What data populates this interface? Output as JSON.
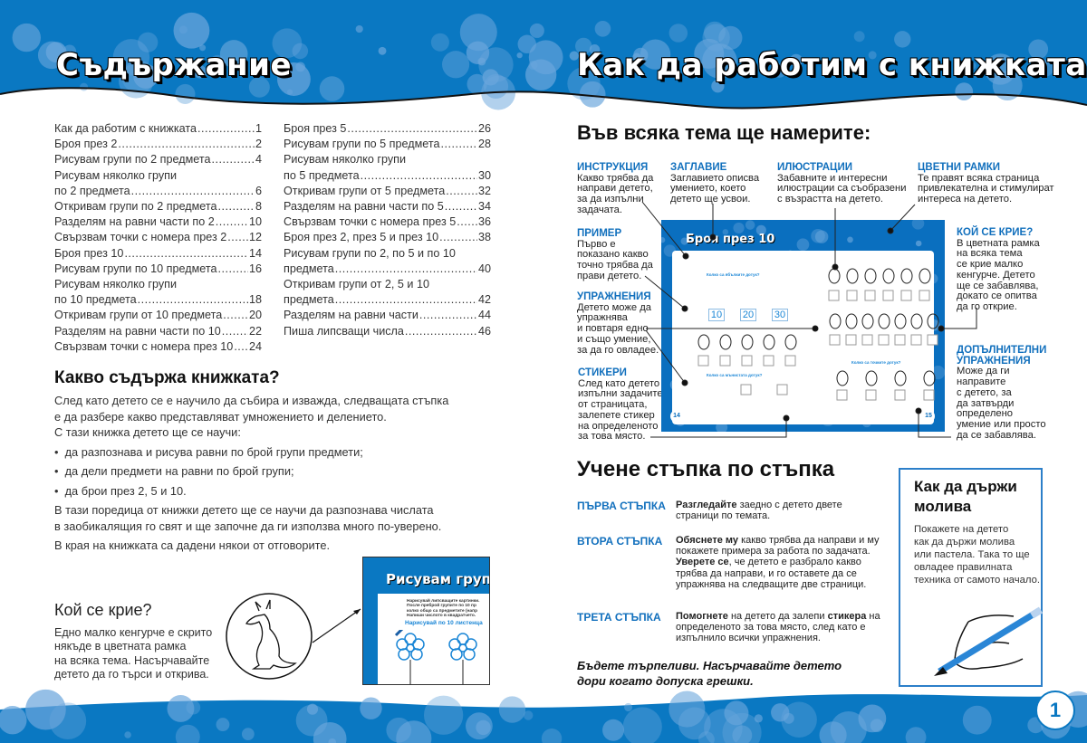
{
  "left_page": {
    "title": "Съдържание",
    "toc_col1": [
      {
        "label": "Как да работим с книжката",
        "page": "1"
      },
      {
        "label": "Броя през 2",
        "page": "2"
      },
      {
        "label": "Рисувам групи по 2 предмета",
        "page": "4"
      },
      {
        "label": "Рисувам няколко групи",
        "page": ""
      },
      {
        "label": "по 2 предмета",
        "page": "6"
      },
      {
        "label": "Откривам групи по 2 предмета",
        "page": "8"
      },
      {
        "label": "Разделям на равни части по 2",
        "page": "10"
      },
      {
        "label": "Свързвам точки с номера през 2",
        "page": "12"
      },
      {
        "label": "Броя през 10",
        "page": "14"
      },
      {
        "label": "Рисувам групи по 10 предмета",
        "page": "16"
      },
      {
        "label": "Рисувам няколко групи",
        "page": ""
      },
      {
        "label": "по 10 предмета",
        "page": "18"
      },
      {
        "label": "Откривам групи от 10 предмета",
        "page": "20"
      },
      {
        "label": "Разделям на равни части по 10",
        "page": "22"
      },
      {
        "label": "Свързвам точки с номера през 10",
        "page": "24"
      }
    ],
    "toc_col2": [
      {
        "label": "Броя през 5",
        "page": "26"
      },
      {
        "label": "Рисувам групи по 5 предмета",
        "page": "28"
      },
      {
        "label": "Рисувам няколко групи",
        "page": ""
      },
      {
        "label": "по 5 предмета",
        "page": "30"
      },
      {
        "label": "Откривам групи от 5 предмета",
        "page": "32"
      },
      {
        "label": "Разделям на равни части по 5",
        "page": "34"
      },
      {
        "label": "Свързвам точки с номера през 5",
        "page": "36"
      },
      {
        "label": "Броя през 2, през 5 и през 10",
        "page": "38"
      },
      {
        "label": "Рисувам групи по 2, по 5 и по 10",
        "page": ""
      },
      {
        "label": "предмета",
        "page": "40"
      },
      {
        "label": "Откривам групи от 2, 5 и 10",
        "page": ""
      },
      {
        "label": "предмета",
        "page": "42"
      },
      {
        "label": "Разделям на равни части",
        "page": "44"
      },
      {
        "label": "Пиша липсващи числа",
        "page": "46"
      }
    ],
    "contents_heading": "Какво съдържа книжката?",
    "intro": [
      "След като детето се е научило да събира и изважда, следващата стъпка",
      "е да разбере какво представляват умножението и делението.",
      "С тази книжка детето ще се научи:"
    ],
    "bullets": [
      "да разпознава и рисува равни по брой групи предмети;",
      "да дели предмети на равни по брой групи;",
      "да брои през 2, 5 и 10."
    ],
    "series_text": [
      "В тази поредица от книжки детето ще се научи да разпознава числата",
      "в заобикалящия го свят и ще започне да ги използва много по-уверено."
    ],
    "answers_text": "В края на книжката са дадени някои от отговорите.",
    "hide_heading": "Кой се крие?",
    "hide_text": [
      "Едно малко кенгурче е скрито",
      "някъде в цветната рамка",
      "на всяка тема. Насърчавайте",
      "детето да го търси и открива."
    ],
    "sample": {
      "title": "Рисувам групи",
      "lines": [
        "Нарисувай липсващите картинки.",
        "После преброй групите по 10 пр",
        "колко общо са предметите (напр",
        "Напиши числото в квадратчето."
      ],
      "task": "Нарисувай по 10 листенца"
    }
  },
  "right_page": {
    "title": "Как да работим с книжката",
    "find_heading": "Във всяка тема ще намерите:",
    "callouts": {
      "instruction": {
        "title": "ИНСТРУКЦИЯ",
        "text": [
          "Какво трябва да",
          "направи детето,",
          "за да изпълни",
          "задачата."
        ]
      },
      "heading": {
        "title": "ЗАГЛАВИЕ",
        "text": [
          "Заглавието описва",
          "умението, което",
          "детето ще усвои."
        ]
      },
      "illustrations": {
        "title": "ИЛЮСТРАЦИИ",
        "text": [
          "Забавните и интересни",
          "илюстрации са съобразени",
          "с възрастта на детето."
        ]
      },
      "frames": {
        "title": "ЦВЕТНИ РАМКИ",
        "text": [
          "Те правят всяка страница",
          "привлекателна и стимулират",
          "интереса на детето."
        ]
      },
      "example": {
        "title": "ПРИМЕР",
        "text": [
          "Първо е",
          "показано какво",
          "точно трябва да",
          "прави детето."
        ]
      },
      "exercises": {
        "title": "УПРАЖНЕНИЯ",
        "text": [
          "Детето може да",
          "упражнява",
          "и повтаря едно",
          "и също умение,",
          "за да го овладее."
        ]
      },
      "stickers": {
        "title": "СТИКЕРИ",
        "text": [
          "След като детето",
          "изпълни задачите",
          "от страницата,",
          "залепете стикер",
          "на определеното",
          "за това място."
        ]
      },
      "hidden": {
        "title": "КОЙ СЕ КРИЕ?",
        "text": [
          "В цветната рамка",
          "на всяка тема",
          "се крие малко",
          "кенгурче. Детето",
          "ще се забавлява,",
          "докато се опитва",
          "да го открие."
        ]
      },
      "extra": {
        "title": "ДОПЪЛНИТЕЛНИ УПРАЖНЕНИЯ",
        "text": [
          "Може да ги",
          "направите",
          "с детето, за",
          "да затвърди",
          "определено",
          "умение или просто",
          "да се забавлява."
        ]
      }
    },
    "thumbnail": {
      "title": "Броя през 10",
      "q_apples": "Колко са ябълките дотук?",
      "q_beads": "Колко са мънистата дотук?",
      "q_spots": "Колко са точките дотук?",
      "numbers": [
        "10",
        "20",
        "30"
      ],
      "page_left": "14",
      "page_right": "15"
    },
    "steps_heading": "Учене стъпка по стъпка",
    "steps": [
      {
        "label": "ПЪРВА СТЪПКА",
        "bold": "Разгледайте",
        "text": " заедно с детето двете страници по темата."
      },
      {
        "label": "ВТОРА СТЪПКА",
        "bold": "Обяснете му",
        "text": " какво трябва да направи и му покажете примера за работа по задачата. ",
        "bold2": "Уверете се",
        "text2": ", че детето е разбрало какво трябва да направи, и го оставете да се упражнява на следващите две страници."
      },
      {
        "label": "ТРЕТА СТЪПКА",
        "bold": "Помогнете",
        "text": " на детето да залепи ",
        "bold2": "стикера",
        "text2": " на определеното за това място, след като е изпълнило всички упражнения."
      }
    ],
    "patience": [
      "Бъдете търпеливи. Насърчавайте детето",
      "дори когато допуска грешки."
    ],
    "pencil_box": {
      "heading": "Как да държи молива",
      "text": [
        "Покажете на детето",
        "как да държи молива",
        "или пастела. Така то ще",
        "овладее правилната",
        "техника от самото начало."
      ]
    },
    "page_number": "1"
  },
  "colors": {
    "brand_blue": "#0a78c2",
    "accent_blue": "#1270bd",
    "bubble": "#6aa6dc"
  }
}
